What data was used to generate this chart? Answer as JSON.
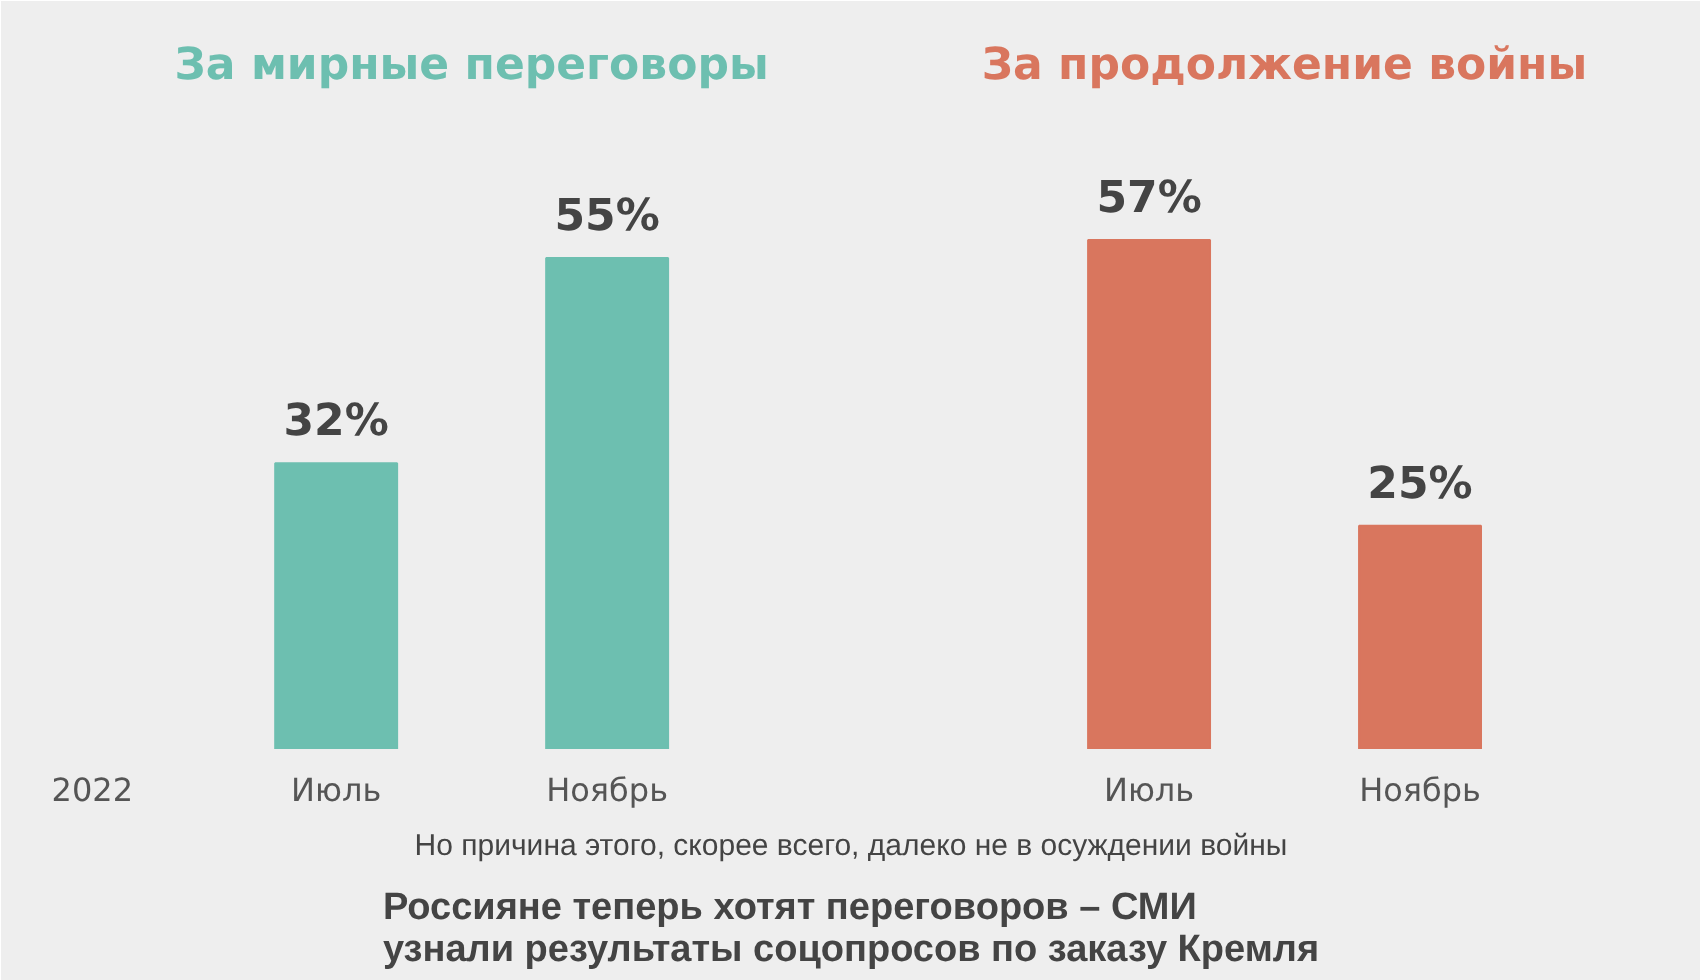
{
  "chart_data": {
    "type": "bar",
    "title": "Россияне теперь хотят переговоров – СМИ узнали результаты соцопросов по заказу Кремля",
    "subtitle": "Но причина этого, скорее всего, далеко не в осуждении войны",
    "categories": [
      "Июль",
      "Ноябрь",
      "Июль",
      "Ноябрь"
    ],
    "series": [
      {
        "name": "За мирные переговоры",
        "color": "#6dbfb0",
        "values": [
          32,
          55,
          null,
          null
        ],
        "value_labels": [
          "32%",
          "55%",
          null,
          null
        ]
      },
      {
        "name": "За продолжение войны",
        "color": "#d9765e",
        "values": [
          null,
          null,
          57,
          25
        ],
        "value_labels": [
          null,
          null,
          "57%",
          "25%"
        ]
      }
    ],
    "annotations": [
      "2022"
    ],
    "grid": false
  }
}
